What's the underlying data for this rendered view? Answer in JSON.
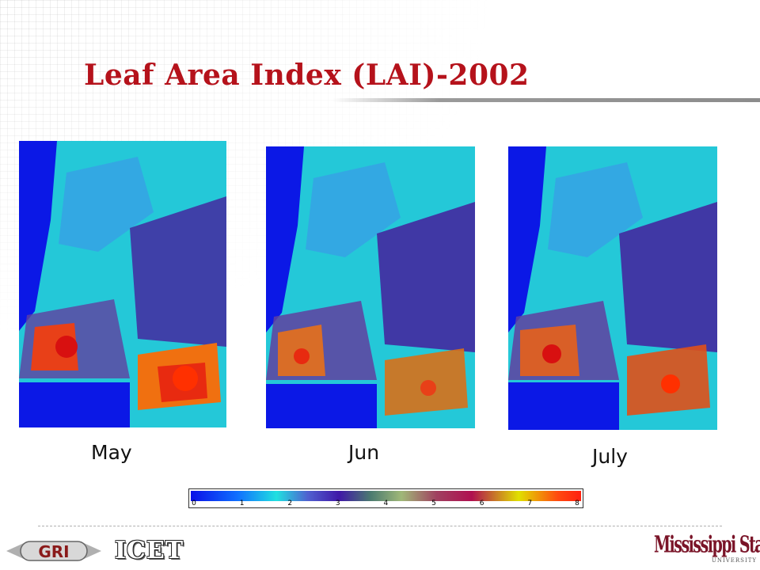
{
  "slide": {
    "title": "Leaf Area Index (LAI)-2002",
    "title_color": "#b5121b"
  },
  "maps": [
    {
      "label": "May"
    },
    {
      "label": "Jun"
    },
    {
      "label": "July"
    }
  ],
  "colorbar": {
    "ticks": [
      "0",
      "1",
      "2",
      "3",
      "4",
      "5",
      "6",
      "7",
      "8"
    ],
    "min": 0,
    "max": 8
  },
  "footer": {
    "left_logo_text": "GRI",
    "middle_logo_text": "ICET",
    "right_logo_text": "Mississippi State",
    "right_logo_subtext": "UNIVERSITY",
    "right_logo_color": "#7a1428"
  }
}
